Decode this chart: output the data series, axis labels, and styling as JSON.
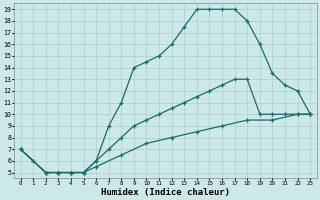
{
  "xlabel": "Humidex (Indice chaleur)",
  "bg_color": "#cde8e8",
  "grid_color": "#aacfcf",
  "line_color": "#1a6b6b",
  "xlim": [
    -0.5,
    23.5
  ],
  "ylim": [
    4.5,
    19.5
  ],
  "xticks": [
    0,
    1,
    2,
    3,
    4,
    5,
    6,
    7,
    8,
    9,
    10,
    11,
    12,
    13,
    14,
    15,
    16,
    17,
    18,
    19,
    20,
    21,
    22,
    23
  ],
  "yticks": [
    5,
    6,
    7,
    8,
    9,
    10,
    11,
    12,
    13,
    14,
    15,
    16,
    17,
    18,
    19
  ],
  "line1_x": [
    0,
    1,
    2,
    3,
    4,
    5,
    6,
    7,
    8,
    9,
    10,
    11,
    12,
    13,
    14,
    15,
    16,
    17,
    18,
    19,
    20,
    21,
    22,
    23
  ],
  "line1_y": [
    7,
    6,
    5,
    5,
    5,
    5,
    6,
    9,
    11,
    14,
    14.5,
    15,
    16,
    17.5,
    19,
    19,
    19,
    19,
    18,
    16,
    13.5,
    12.5,
    12,
    10
  ],
  "line2_x": [
    0,
    2,
    3,
    4,
    5,
    6,
    7,
    8,
    9,
    10,
    11,
    12,
    13,
    14,
    15,
    16,
    17,
    18,
    19,
    20,
    21,
    22,
    23
  ],
  "line2_y": [
    7,
    5,
    5,
    5,
    5,
    6,
    7,
    8,
    9,
    9.5,
    10,
    10.5,
    11,
    11.5,
    12,
    12.5,
    13,
    13,
    10,
    10,
    10,
    10,
    10
  ],
  "line3_x": [
    0,
    2,
    3,
    4,
    5,
    6,
    8,
    10,
    12,
    14,
    16,
    18,
    20,
    22,
    23
  ],
  "line3_y": [
    7,
    5,
    5,
    5,
    5,
    5.5,
    6.5,
    7.5,
    8,
    8.5,
    9,
    9.5,
    9.5,
    10,
    10
  ]
}
